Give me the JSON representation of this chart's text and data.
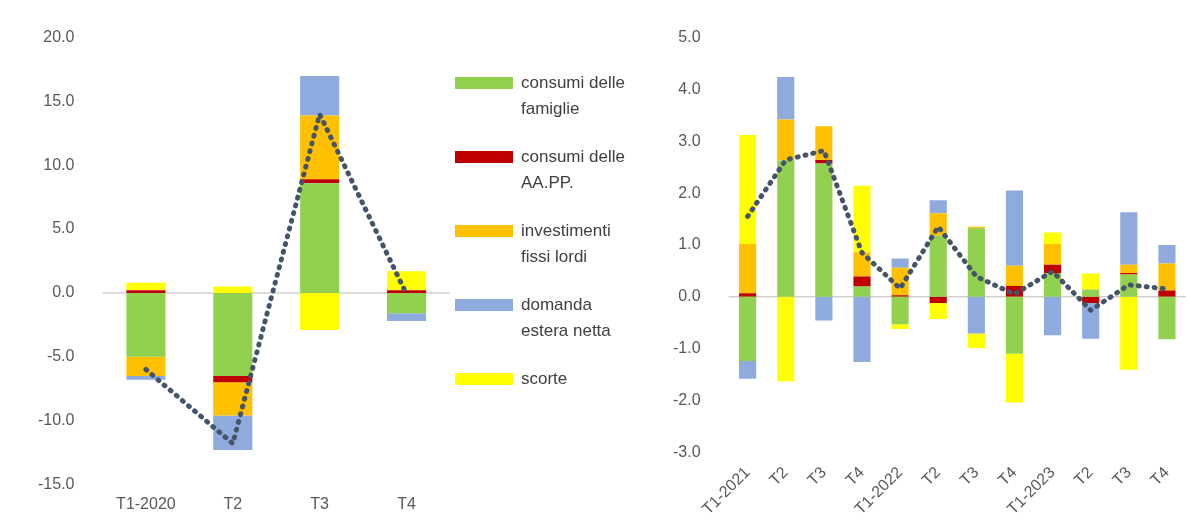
{
  "chart_data": [
    {
      "type": "bar",
      "stacked": true,
      "categories": [
        "T1-2020",
        "T2",
        "T3",
        "T4"
      ],
      "ylim": [
        -15,
        20
      ],
      "yticks": [
        {
          "value": -15,
          "label": "-15.0"
        },
        {
          "value": -10,
          "label": "-10.0"
        },
        {
          "value": -5,
          "label": "-5.0"
        },
        {
          "value": 0,
          "label": "0.0"
        },
        {
          "value": 5,
          "label": "5.0"
        },
        {
          "value": 10,
          "label": "10.0"
        },
        {
          "value": 15,
          "label": "15.0"
        },
        {
          "value": 20,
          "label": "20.0"
        }
      ],
      "grid": false,
      "legend": "right",
      "ref_lines": [
        {
          "axis": "y",
          "value": 0,
          "color": "#d0d0d0"
        }
      ],
      "series": [
        {
          "name": "consumi delle famiglie",
          "color": "#92d050",
          "values": [
            -5.0,
            -6.5,
            8.6,
            -1.6
          ]
        },
        {
          "name": "consumi delle AA.PP.",
          "color": "#c00000",
          "values": [
            0.2,
            -0.5,
            0.3,
            0.2
          ]
        },
        {
          "name": "investimenti fissi lordi",
          "color": "#ffc000",
          "values": [
            -1.5,
            -2.6,
            5.0,
            0.0
          ]
        },
        {
          "name": "domanda estera netta",
          "color": "#8faadc",
          "values": [
            -0.3,
            -2.7,
            3.1,
            -0.6
          ]
        },
        {
          "name": "scorte",
          "color": "#ffff00",
          "values": [
            0.6,
            0.5,
            -2.9,
            1.5
          ]
        },
        {
          "type": "line",
          "color": "#44546a",
          "line_style": "dotted",
          "marker": "none",
          "values": [
            -6.0,
            -11.8,
            14.0,
            -0.1
          ]
        }
      ]
    },
    {
      "type": "bar",
      "stacked": true,
      "categories": [
        "T1-2021",
        "T2",
        "T3",
        "T4",
        "T1-2022",
        "T2",
        "T3",
        "T4",
        "T1-2023",
        "T2",
        "T3",
        "T4"
      ],
      "ylim": [
        -3,
        5
      ],
      "yticks": [
        {
          "value": -3,
          "label": "-3.0"
        },
        {
          "value": -2,
          "label": "-2.0"
        },
        {
          "value": -1,
          "label": "-1.0"
        },
        {
          "value": 0,
          "label": "0.0"
        },
        {
          "value": 1,
          "label": "1.0"
        },
        {
          "value": 2,
          "label": "2.0"
        },
        {
          "value": 3,
          "label": "3.0"
        },
        {
          "value": 4,
          "label": "4.0"
        },
        {
          "value": 5,
          "label": "5.0"
        }
      ],
      "grid": false,
      "ref_lines": [
        {
          "axis": "y",
          "value": 0,
          "color": "#d0d0d0"
        }
      ],
      "series": [
        {
          "color": "#92d050",
          "values": [
            -1.24,
            2.63,
            2.57,
            0.2,
            -0.53,
            1.18,
            1.32,
            -1.1,
            0.46,
            0.14,
            0.43,
            -0.82
          ]
        },
        {
          "color": "#c00000",
          "values": [
            0.07,
            null,
            0.07,
            0.19,
            0.03,
            -0.12,
            null,
            0.21,
            0.16,
            -0.12,
            0.03,
            0.12
          ]
        },
        {
          "color": "#ffc000",
          "values": [
            0.95,
            0.79,
            0.65,
            0.47,
            0.53,
            0.43,
            0.03,
            0.39,
            0.4,
            null,
            0.16,
            0.52
          ]
        },
        {
          "color": "#8faadc",
          "values": [
            -0.34,
            0.82,
            -0.46,
            -1.26,
            0.18,
            0.25,
            -0.71,
            1.45,
            -0.74,
            -0.69,
            1.01,
            0.36
          ]
        },
        {
          "color": "#ffff00",
          "values": [
            2.1,
            -1.63,
            null,
            1.28,
            -0.09,
            -0.31,
            -0.28,
            -0.94,
            0.22,
            0.31,
            -1.41,
            null
          ]
        },
        {
          "type": "line",
          "color": "#44546a",
          "line_style": "dotted",
          "marker": "none",
          "values": [
            1.55,
            2.64,
            2.82,
            0.85,
            0.16,
            1.35,
            0.39,
            0.05,
            0.49,
            -0.26,
            0.23,
            0.15
          ]
        }
      ]
    }
  ]
}
